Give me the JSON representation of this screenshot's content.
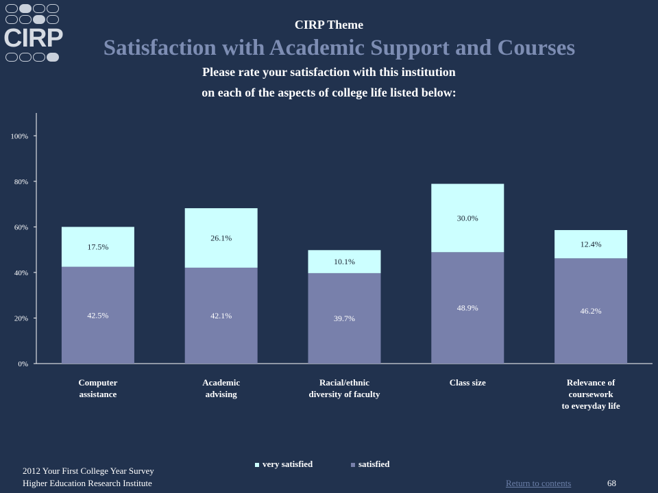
{
  "logo": {
    "text": "CIRP"
  },
  "header": {
    "theme": "CIRP Theme",
    "title": "Satisfaction with Academic Support and Courses",
    "question_line1": "Please rate your satisfaction with this institution",
    "question_line2": "on each of the aspects of college life listed below:"
  },
  "chart_data": {
    "type": "bar",
    "stacked": true,
    "categories": [
      [
        "Computer",
        "assistance"
      ],
      [
        "Academic",
        "advising"
      ],
      [
        "Racial/ethnic",
        "diversity of faculty"
      ],
      [
        "Class size"
      ],
      [
        "Relevance of",
        "coursework",
        "to everyday life"
      ]
    ],
    "series": [
      {
        "name": "satisfied",
        "values": [
          42.5,
          42.1,
          39.7,
          48.9,
          46.2
        ],
        "labels": [
          "42.5%",
          "42.1%",
          "39.7%",
          "48.9%",
          "46.2%"
        ],
        "color": "#7880ab"
      },
      {
        "name": "very satisfied",
        "values": [
          17.5,
          26.1,
          10.1,
          30.0,
          12.4
        ],
        "labels": [
          "17.5%",
          "26.1%",
          "10.1%",
          "30.0%",
          "12.4%"
        ],
        "color": "#ccffff"
      }
    ],
    "ylim": [
      0,
      110
    ],
    "yticks": [
      0,
      20,
      40,
      60,
      80,
      100
    ],
    "ytick_labels": [
      "0%",
      "20%",
      "40%",
      "60%",
      "80%",
      "100%"
    ],
    "legend_position": "bottom",
    "grid": false
  },
  "legend": {
    "very_satisfied": "very satisfied",
    "satisfied": "satisfied"
  },
  "footer": {
    "survey": "2012 Your First College Year Survey",
    "institute": "Higher Education Research Institute",
    "return_link": "Return to contents",
    "page_number": "68"
  }
}
